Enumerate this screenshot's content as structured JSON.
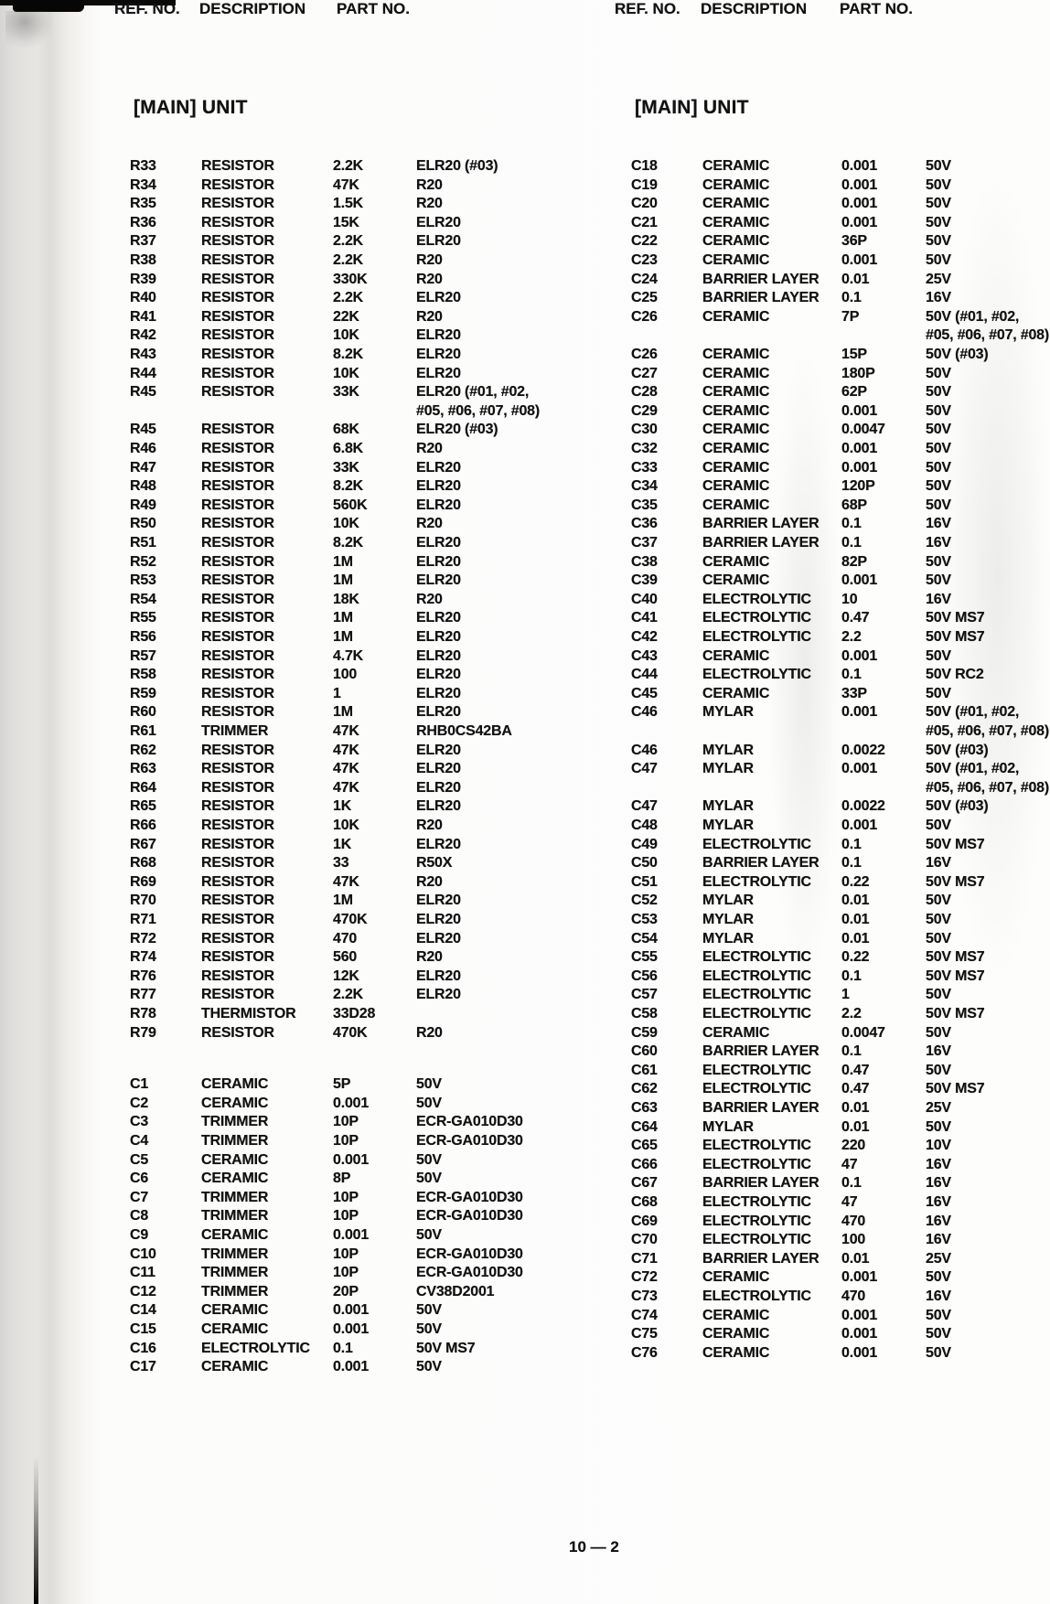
{
  "doc": {
    "footer_page_number": "10 — 2",
    "left": {
      "title": "[MAIN] UNIT",
      "headers": [
        "REF. NO.",
        "DESCRIPTION",
        "PART NO."
      ],
      "rows": [
        [
          "R33",
          "RESISTOR",
          "2.2K",
          "ELR20 (#03)"
        ],
        [
          "R34",
          "RESISTOR",
          "47K",
          "R20"
        ],
        [
          "R35",
          "RESISTOR",
          "1.5K",
          "R20"
        ],
        [
          "R36",
          "RESISTOR",
          "15K",
          "ELR20"
        ],
        [
          "R37",
          "RESISTOR",
          "2.2K",
          "ELR20"
        ],
        [
          "R38",
          "RESISTOR",
          "2.2K",
          "R20"
        ],
        [
          "R39",
          "RESISTOR",
          "330K",
          "R20"
        ],
        [
          "R40",
          "RESISTOR",
          "2.2K",
          "ELR20"
        ],
        [
          "R41",
          "RESISTOR",
          "22K",
          "R20"
        ],
        [
          "R42",
          "RESISTOR",
          "10K",
          "ELR20"
        ],
        [
          "R43",
          "RESISTOR",
          "8.2K",
          "ELR20"
        ],
        [
          "R44",
          "RESISTOR",
          "10K",
          "ELR20"
        ],
        [
          "R45",
          "RESISTOR",
          "33K",
          "ELR20 (#01, #02,"
        ],
        [
          "",
          "",
          "",
          "#05, #06, #07, #08)"
        ],
        [
          "R45",
          "RESISTOR",
          "68K",
          "ELR20 (#03)"
        ],
        [
          "R46",
          "RESISTOR",
          "6.8K",
          "R20"
        ],
        [
          "R47",
          "RESISTOR",
          "33K",
          "ELR20"
        ],
        [
          "R48",
          "RESISTOR",
          "8.2K",
          "ELR20"
        ],
        [
          "R49",
          "RESISTOR",
          "560K",
          "ELR20"
        ],
        [
          "R50",
          "RESISTOR",
          "10K",
          "R20"
        ],
        [
          "R51",
          "RESISTOR",
          "8.2K",
          "ELR20"
        ],
        [
          "R52",
          "RESISTOR",
          "1M",
          "ELR20"
        ],
        [
          "R53",
          "RESISTOR",
          "1M",
          "ELR20"
        ],
        [
          "R54",
          "RESISTOR",
          "18K",
          "R20"
        ],
        [
          "R55",
          "RESISTOR",
          "1M",
          "ELR20"
        ],
        [
          "R56",
          "RESISTOR",
          "1M",
          "ELR20"
        ],
        [
          "R57",
          "RESISTOR",
          "4.7K",
          "ELR20"
        ],
        [
          "R58",
          "RESISTOR",
          "100",
          "ELR20"
        ],
        [
          "R59",
          "RESISTOR",
          "1",
          "ELR20"
        ],
        [
          "R60",
          "RESISTOR",
          "1M",
          "ELR20"
        ],
        [
          "R61",
          "TRIMMER",
          "47K",
          "RHB0CS42BA"
        ],
        [
          "R62",
          "RESISTOR",
          "47K",
          "ELR20"
        ],
        [
          "R63",
          "RESISTOR",
          "47K",
          "ELR20"
        ],
        [
          "R64",
          "RESISTOR",
          "47K",
          "ELR20"
        ],
        [
          "R65",
          "RESISTOR",
          "1K",
          "ELR20"
        ],
        [
          "R66",
          "RESISTOR",
          "10K",
          "R20"
        ],
        [
          "R67",
          "RESISTOR",
          "1K",
          "ELR20"
        ],
        [
          "R68",
          "RESISTOR",
          "33",
          "R50X"
        ],
        [
          "R69",
          "RESISTOR",
          "47K",
          "R20"
        ],
        [
          "R70",
          "RESISTOR",
          "1M",
          "ELR20"
        ],
        [
          "R71",
          "RESISTOR",
          "470K",
          "ELR20"
        ],
        [
          "R72",
          "RESISTOR",
          "470",
          "ELR20"
        ],
        [
          "R74",
          "RESISTOR",
          "560",
          "R20"
        ],
        [
          "R76",
          "RESISTOR",
          "12K",
          "ELR20"
        ],
        [
          "R77",
          "RESISTOR",
          "2.2K",
          "ELR20"
        ],
        [
          "R78",
          "THERMISTOR",
          "33D28",
          ""
        ],
        [
          "R79",
          "RESISTOR",
          "470K",
          "R20"
        ],
        null,
        [
          "C1",
          "CERAMIC",
          "5P",
          "50V"
        ],
        [
          "C2",
          "CERAMIC",
          "0.001",
          "50V"
        ],
        [
          "C3",
          "TRIMMER",
          "10P",
          "ECR-GA010D30"
        ],
        [
          "C4",
          "TRIMMER",
          "10P",
          "ECR-GA010D30"
        ],
        [
          "C5",
          "CERAMIC",
          "0.001",
          "50V"
        ],
        [
          "C6",
          "CERAMIC",
          "8P",
          "50V"
        ],
        [
          "C7",
          "TRIMMER",
          "10P",
          "ECR-GA010D30"
        ],
        [
          "C8",
          "TRIMMER",
          "10P",
          "ECR-GA010D30"
        ],
        [
          "C9",
          "CERAMIC",
          "0.001",
          "50V"
        ],
        [
          "C10",
          "TRIMMER",
          "10P",
          "ECR-GA010D30"
        ],
        [
          "C11",
          "TRIMMER",
          "10P",
          "ECR-GA010D30"
        ],
        [
          "C12",
          "TRIMMER",
          "20P",
          "CV38D2001"
        ],
        [
          "C14",
          "CERAMIC",
          "0.001",
          "50V"
        ],
        [
          "C15",
          "CERAMIC",
          "0.001",
          "50V"
        ],
        [
          "C16",
          "ELECTROLYTIC",
          "0.1",
          "50V  MS7"
        ],
        [
          "C17",
          "CERAMIC",
          "0.001",
          "50V"
        ]
      ]
    },
    "right": {
      "title": "[MAIN] UNIT",
      "headers": [
        "REF. NO.",
        "DESCRIPTION",
        "PART NO."
      ],
      "rows": [
        [
          "C18",
          "CERAMIC",
          "0.001",
          "50V"
        ],
        [
          "C19",
          "CERAMIC",
          "0.001",
          "50V"
        ],
        [
          "C20",
          "CERAMIC",
          "0.001",
          "50V"
        ],
        [
          "C21",
          "CERAMIC",
          "0.001",
          "50V"
        ],
        [
          "C22",
          "CERAMIC",
          "36P",
          "50V"
        ],
        [
          "C23",
          "CERAMIC",
          "0.001",
          "50V"
        ],
        [
          "C24",
          "BARRIER LAYER",
          "0.01",
          "25V"
        ],
        [
          "C25",
          "BARRIER LAYER",
          "0.1",
          "16V"
        ],
        [
          "C26",
          "CERAMIC",
          "7P",
          "50V (#01, #02,"
        ],
        [
          "",
          "",
          "",
          "#05, #06, #07, #08)"
        ],
        [
          "C26",
          "CERAMIC",
          "15P",
          "50V (#03)"
        ],
        [
          "C27",
          "CERAMIC",
          "180P",
          "50V"
        ],
        [
          "C28",
          "CERAMIC",
          "62P",
          "50V"
        ],
        [
          "C29",
          "CERAMIC",
          "0.001",
          "50V"
        ],
        [
          "C30",
          "CERAMIC",
          "0.0047",
          "50V"
        ],
        [
          "C32",
          "CERAMIC",
          "0.001",
          "50V"
        ],
        [
          "C33",
          "CERAMIC",
          "0.001",
          "50V"
        ],
        [
          "C34",
          "CERAMIC",
          "120P",
          "50V"
        ],
        [
          "C35",
          "CERAMIC",
          "68P",
          "50V"
        ],
        [
          "C36",
          "BARRIER LAYER",
          "0.1",
          "16V"
        ],
        [
          "C37",
          "BARRIER LAYER",
          "0.1",
          "16V"
        ],
        [
          "C38",
          "CERAMIC",
          "82P",
          "50V"
        ],
        [
          "C39",
          "CERAMIC",
          "0.001",
          "50V"
        ],
        [
          "C40",
          "ELECTROLYTIC",
          "10",
          "16V"
        ],
        [
          "C41",
          "ELECTROLYTIC",
          "0.47",
          "50V  MS7"
        ],
        [
          "C42",
          "ELECTROLYTIC",
          "2.2",
          "50V  MS7"
        ],
        [
          "C43",
          "CERAMIC",
          "0.001",
          "50V"
        ],
        [
          "C44",
          "ELECTROLYTIC",
          "0.1",
          "50V  RC2"
        ],
        [
          "C45",
          "CERAMIC",
          "33P",
          "50V"
        ],
        [
          "C46",
          "MYLAR",
          "0.001",
          "50V (#01, #02,"
        ],
        [
          "",
          "",
          "",
          "#05, #06, #07, #08)"
        ],
        [
          "C46",
          "MYLAR",
          "0.0022",
          "50V (#03)"
        ],
        [
          "C47",
          "MYLAR",
          "0.001",
          "50V (#01, #02,"
        ],
        [
          "",
          "",
          "",
          "#05, #06, #07, #08)"
        ],
        [
          "C47",
          "MYLAR",
          "0.0022",
          "50V (#03)"
        ],
        [
          "C48",
          "MYLAR",
          "0.001",
          "50V"
        ],
        [
          "C49",
          "ELECTROLYTIC",
          "0.1",
          "50V  MS7"
        ],
        [
          "C50",
          "BARRIER LAYER",
          "0.1",
          "16V"
        ],
        [
          "C51",
          "ELECTROLYTIC",
          "0.22",
          "50V  MS7"
        ],
        [
          "C52",
          "MYLAR",
          "0.01",
          "50V"
        ],
        [
          "C53",
          "MYLAR",
          "0.01",
          "50V"
        ],
        [
          "C54",
          "MYLAR",
          "0.01",
          "50V"
        ],
        [
          "C55",
          "ELECTROLYTIC",
          "0.22",
          "50V  MS7"
        ],
        [
          "C56",
          "ELECTROLYTIC",
          "0.1",
          "50V  MS7"
        ],
        [
          "C57",
          "ELECTROLYTIC",
          "1",
          "50V"
        ],
        [
          "C58",
          "ELECTROLYTIC",
          "2.2",
          "50V  MS7"
        ],
        [
          "C59",
          "CERAMIC",
          "0.0047",
          "50V"
        ],
        [
          "C60",
          "BARRIER LAYER",
          "0.1",
          "16V"
        ],
        [
          "C61",
          "ELECTROLYTIC",
          "0.47",
          "50V"
        ],
        [
          "C62",
          "ELECTROLYTIC",
          "0.47",
          "50V  MS7"
        ],
        [
          "C63",
          "BARRIER LAYER",
          "0.01",
          "25V"
        ],
        [
          "C64",
          "MYLAR",
          "0.01",
          "50V"
        ],
        [
          "C65",
          "ELECTROLYTIC",
          "220",
          "10V"
        ],
        [
          "C66",
          "ELECTROLYTIC",
          "47",
          "16V"
        ],
        [
          "C67",
          "BARRIER LAYER",
          "0.1",
          "16V"
        ],
        [
          "C68",
          "ELECTROLYTIC",
          "47",
          "16V"
        ],
        [
          "C69",
          "ELECTROLYTIC",
          "470",
          "16V"
        ],
        [
          "C70",
          "ELECTROLYTIC",
          "100",
          "16V"
        ],
        [
          "C71",
          "BARRIER LAYER",
          "0.01",
          "25V"
        ],
        [
          "C72",
          "CERAMIC",
          "0.001",
          "50V"
        ],
        [
          "C73",
          "ELECTROLYTIC",
          "470",
          "16V"
        ],
        [
          "C74",
          "CERAMIC",
          "0.001",
          "50V"
        ],
        [
          "C75",
          "CERAMIC",
          "0.001",
          "50V"
        ],
        [
          "C76",
          "CERAMIC",
          "0.001",
          "50V"
        ]
      ]
    }
  }
}
